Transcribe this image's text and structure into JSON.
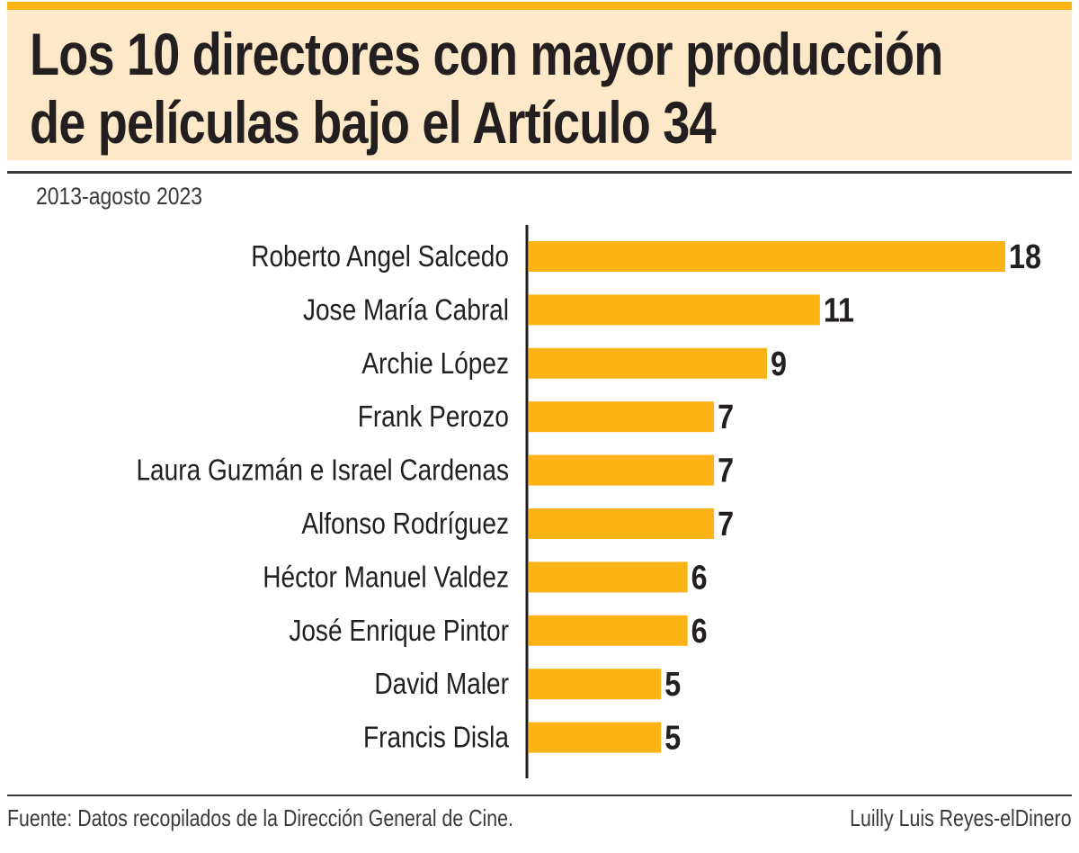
{
  "chart_data": {
    "type": "bar",
    "orientation": "horizontal",
    "title": "Los 10 directores con mayor producción de películas bajo el Artículo 34",
    "title_lines": [
      "Los 10 directores con mayor producción",
      "de películas bajo el Artículo 34"
    ],
    "subtitle": "2013-agosto 2023",
    "categories": [
      "Roberto Angel Salcedo",
      "Jose María Cabral",
      "Archie López",
      "Frank Perozo",
      "Laura Guzmán e Israel Cardenas",
      "Alfonso Rodríguez",
      "Héctor Manuel Valdez",
      "José Enrique Pintor",
      "David Maler",
      "Francis Disla"
    ],
    "values": [
      18,
      11,
      9,
      7,
      7,
      7,
      6,
      6,
      5,
      5
    ],
    "xlim": [
      0,
      18
    ],
    "bar_color": "#fbb316",
    "xlabel": "",
    "ylabel": "",
    "grid": false,
    "source": "Fuente: Datos recopilados de la Dirección General de Cine.",
    "credit": "Luilly Luis Reyes-elDinero"
  }
}
